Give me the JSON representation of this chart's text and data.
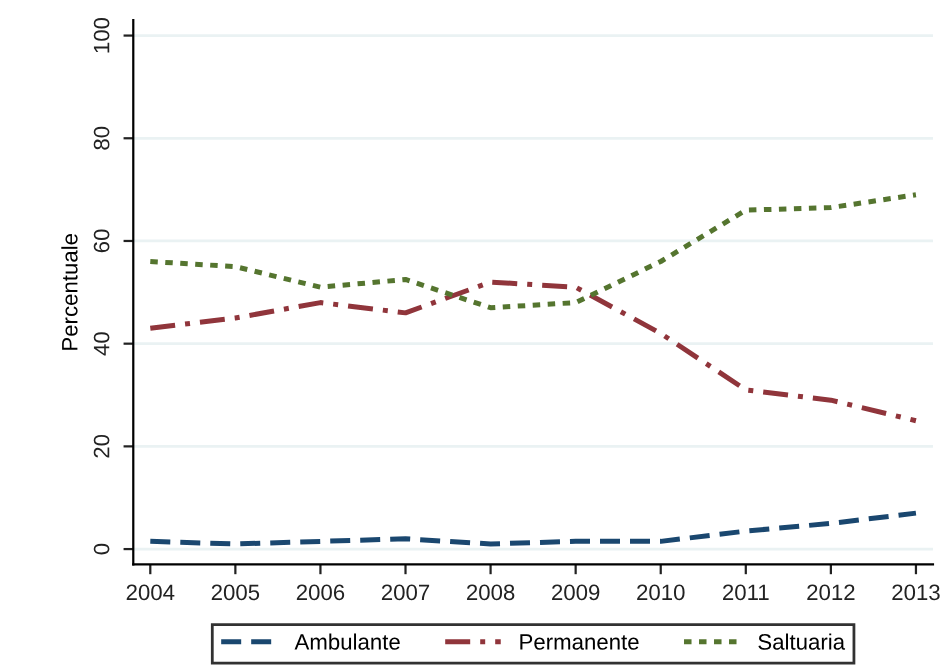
{
  "chart_data": {
    "type": "line",
    "ylabel": "Percentuale",
    "x": [
      2004,
      2005,
      2006,
      2007,
      2008,
      2009,
      2010,
      2011,
      2012,
      2013
    ],
    "series": [
      {
        "name": "Ambulante",
        "color": "#1a476f",
        "line_style": "dashed",
        "values": [
          1.5,
          1,
          1.5,
          2,
          1,
          1.5,
          1.5,
          3.5,
          5,
          7
        ]
      },
      {
        "name": "Permanente",
        "color": "#90353b",
        "line_style": "dashdot",
        "values": [
          43,
          45,
          48,
          46,
          52,
          51,
          42,
          31,
          29,
          25
        ]
      },
      {
        "name": "Saltuaria",
        "color": "#55752f",
        "line_style": "dotted",
        "values": [
          56,
          55,
          51,
          52.5,
          47,
          48,
          56,
          66,
          66.5,
          69
        ]
      }
    ],
    "xlim": [
      2003.8,
      2013.2
    ],
    "ylim": [
      -3,
      103
    ],
    "xticks": [
      2004,
      2005,
      2006,
      2007,
      2008,
      2009,
      2010,
      2011,
      2012,
      2013
    ],
    "yticks": [
      0,
      20,
      40,
      60,
      80,
      100
    ],
    "grid": "y",
    "legend": "bottom"
  }
}
